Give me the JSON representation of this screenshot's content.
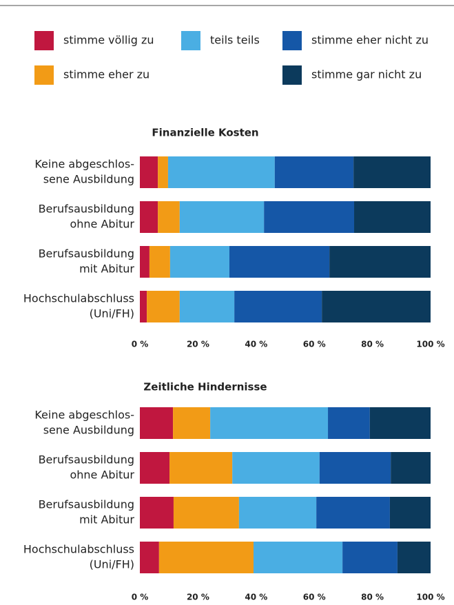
{
  "chart_data": [
    {
      "type": "bar",
      "orientation": "horizontal",
      "stacked": true,
      "title": "Finanzielle Kosten",
      "categories": [
        [
          "Keine abgeschlos-",
          "sene Ausbildung"
        ],
        [
          "Berufsausbildung",
          "ohne Abitur"
        ],
        [
          "Berufsausbildung",
          "mit Abitur"
        ],
        [
          "Hochschulabschluss",
          "(Uni/FH)"
        ]
      ],
      "series": [
        {
          "name": "stimme völlig zu",
          "color": "#c0173f",
          "values": [
            6.2,
            6.2,
            3.3,
            2.4
          ]
        },
        {
          "name": "stimme eher zu",
          "color": "#f29b16",
          "values": [
            3.5,
            7.5,
            7.1,
            11.3
          ]
        },
        {
          "name": "teils teils",
          "color": "#4aaee3",
          "values": [
            36.7,
            29.0,
            20.4,
            18.8
          ]
        },
        {
          "name": "stimme eher nicht zu",
          "color": "#1557a7",
          "values": [
            27.1,
            31.0,
            34.4,
            30.1
          ]
        },
        {
          "name": "stimme gar nicht zu",
          "color": "#0c3a5c",
          "values": [
            26.5,
            26.3,
            34.8,
            37.4
          ]
        }
      ],
      "xlim": [
        0,
        100
      ],
      "xticks": [
        {
          "value": 0,
          "label": "0 %"
        },
        {
          "value": 20,
          "label": "20 %"
        },
        {
          "value": 40,
          "label": "40 %"
        },
        {
          "value": 60,
          "label": "60 %"
        },
        {
          "value": 80,
          "label": "80 %"
        },
        {
          "value": 100,
          "label": "100 %"
        }
      ]
    },
    {
      "type": "bar",
      "orientation": "horizontal",
      "stacked": true,
      "title": "Zeitliche Hindernisse",
      "categories": [
        [
          "Keine abgeschlos-",
          "sene Ausbildung"
        ],
        [
          "Berufsausbildung",
          "ohne Abitur"
        ],
        [
          "Berufsausbildung",
          "mit Abitur"
        ],
        [
          "Hochschulabschluss",
          "(Uni/FH)"
        ]
      ],
      "series": [
        {
          "name": "stimme völlig zu",
          "color": "#c0173f",
          "values": [
            11.4,
            10.2,
            11.6,
            6.6
          ]
        },
        {
          "name": "stimme eher zu",
          "color": "#f29b16",
          "values": [
            12.8,
            21.6,
            22.5,
            32.5
          ]
        },
        {
          "name": "teils teils",
          "color": "#4aaee3",
          "values": [
            40.5,
            30.0,
            26.6,
            30.6
          ]
        },
        {
          "name": "stimme eher nicht zu",
          "color": "#1557a7",
          "values": [
            14.4,
            24.5,
            25.3,
            18.9
          ]
        },
        {
          "name": "stimme gar nicht zu",
          "color": "#0c3a5c",
          "values": [
            20.9,
            13.7,
            14.0,
            11.4
          ]
        }
      ],
      "xlim": [
        0,
        100
      ],
      "xticks": [
        {
          "value": 0,
          "label": "0 %"
        },
        {
          "value": 20,
          "label": "20 %"
        },
        {
          "value": 40,
          "label": "40 %"
        },
        {
          "value": 60,
          "label": "60 %"
        },
        {
          "value": 80,
          "label": "80 %"
        },
        {
          "value": 100,
          "label": "100 %"
        }
      ]
    }
  ]
}
